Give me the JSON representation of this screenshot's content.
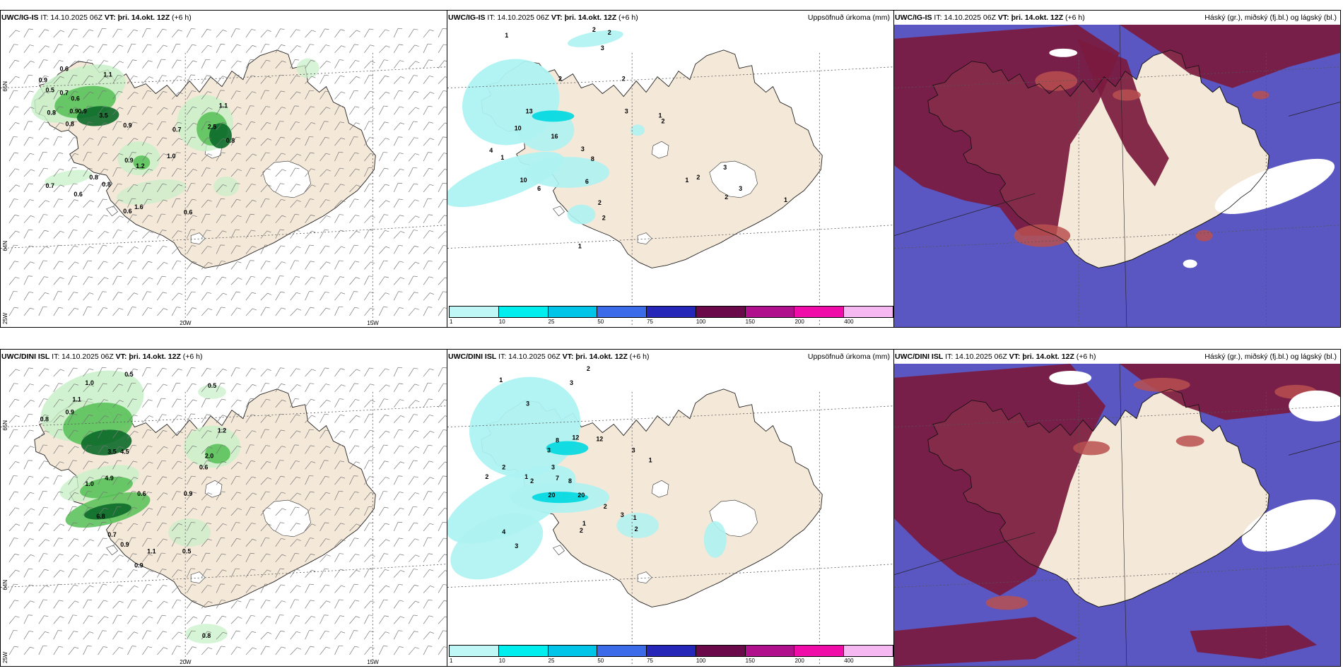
{
  "panels": [
    {
      "src": "UWC/IG-IS",
      "it": "IT: 14.10.2025 06Z",
      "vt": "VT: þri. 14.okt. 12Z",
      "lead": "(+6 h)",
      "right": ""
    },
    {
      "src": "UWC/IG-IS",
      "it": "IT: 14.10.2025 06Z",
      "vt": "VT: þri. 14.okt. 12Z",
      "lead": "(+6 h)",
      "right": "Uppsöfnuð úrkoma (mm)"
    },
    {
      "src": "UWC/IG-IS",
      "it": "IT: 14.10.2025 06Z",
      "vt": "VT: þri. 14.okt. 12Z",
      "lead": "(+6 h)",
      "right": "Háský (gr.), miðský (fj.bl.) og lágský (bl.)"
    },
    {
      "src": "UWC/DINI ISL",
      "it": "IT: 14.10.2025 06Z",
      "vt": "VT: þri. 14.okt. 12Z",
      "lead": "(+6 h)",
      "right": ""
    },
    {
      "src": "UWC/DINI ISL",
      "it": "IT: 14.10.2025 06Z",
      "vt": "VT: þri. 14.okt. 12Z",
      "lead": "(+6 h)",
      "right": "Uppsöfnuð úrkoma (mm)"
    },
    {
      "src": "UWC/DINI ISL",
      "it": "IT: 14.10.2025 06Z",
      "vt": "VT: þri. 14.okt. 12Z",
      "lead": "(+6 h)",
      "right": "Háský (gr.), miðský (fj.bl.) og lágský (bl.)"
    }
  ],
  "grid_labels": {
    "lat65": "65N",
    "lat64": "64N",
    "lon25": "25W",
    "lon20": "20W",
    "lon15": "15W"
  },
  "colorbar": {
    "labels": [
      "1",
      "10",
      "25",
      "50",
      "75",
      "100",
      "150",
      "200",
      "400"
    ],
    "colors": [
      "#bff7f7",
      "#00eeee",
      "#00c5e8",
      "#3b6be8",
      "#2626b8",
      "#6b0a4a",
      "#b0108c",
      "#f00ca8",
      "#f5b8f0"
    ]
  },
  "colors": {
    "land": "#f4e8d8",
    "ocean": "#ffffff",
    "precip_light": "#c8f0c8",
    "precip_mid": "#55c055",
    "precip_heavy": "#0c6a2a",
    "accum_light": "#aef2f2",
    "cloud_high": "#7a1a3e",
    "cloud_mid": "#5a56c2",
    "cloud_low": "#b85050"
  },
  "gust_labels_top": [
    "0.6",
    "0.9",
    "0.5",
    "1.1",
    "0.7",
    "0.6",
    "0.9",
    "0.8",
    "0.9",
    "3.5",
    "0.8",
    "0.9",
    "2.5",
    "0.8",
    "1.1",
    "0.7",
    "1.0",
    "0.9",
    "1.2",
    "0.7",
    "0.8",
    "0.8",
    "0.6",
    "1.6",
    "0.6",
    "0.6"
  ],
  "gust_labels_bot": [
    "0.5",
    "1.0",
    "1.1",
    "0.9",
    "0.8",
    "0.5",
    "3.5",
    "4.5",
    "1.2",
    "2.0",
    "0.6",
    "1.0",
    "4.9",
    "0.6",
    "0.9",
    "6.8",
    "0.7",
    "0.9",
    "1.1",
    "0.5",
    "0.9",
    "0.8"
  ],
  "accum_labels_top": [
    "1",
    "2",
    "2",
    "3",
    "2",
    "13",
    "10",
    "16",
    "2",
    "3",
    "1",
    "2",
    "4",
    "3",
    "8",
    "1",
    "10",
    "6",
    "6",
    "1",
    "2",
    "3",
    "3",
    "2",
    "1",
    "2",
    "2",
    "1"
  ],
  "accum_labels_bot": [
    "2",
    "1",
    "3",
    "3",
    "8",
    "12",
    "12",
    "3",
    "2",
    "1",
    "2",
    "3",
    "2",
    "7",
    "8",
    "20",
    "20",
    "4",
    "3",
    "3",
    "1",
    "2",
    "3",
    "1",
    "1",
    "2",
    "2"
  ]
}
